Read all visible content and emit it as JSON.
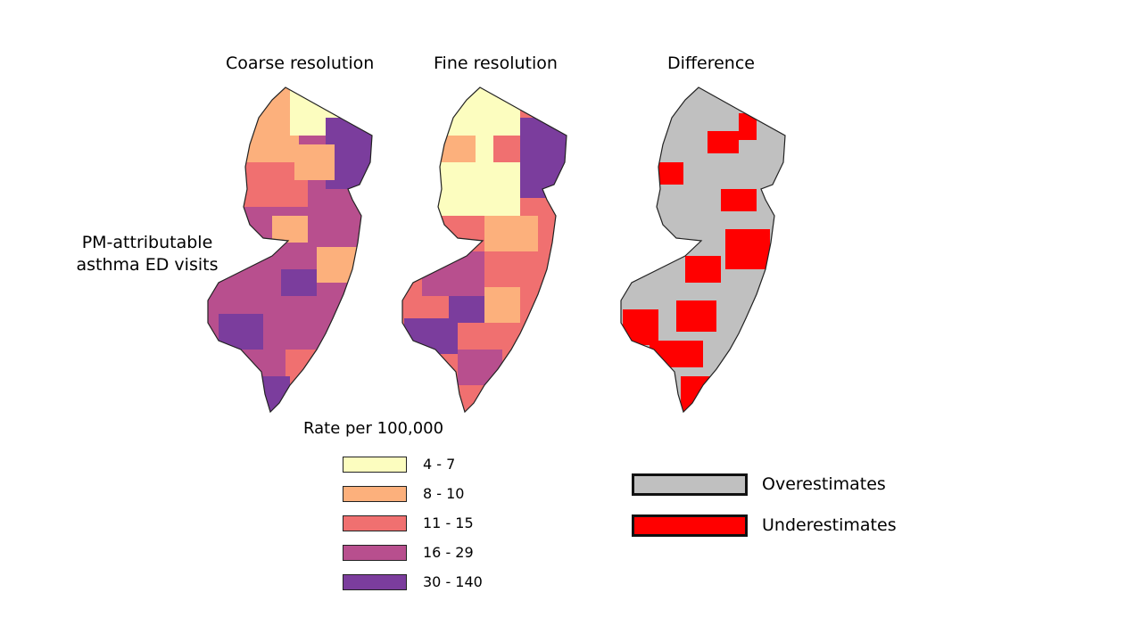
{
  "maps": {
    "coarse_title": "Coarse resolution",
    "fine_title": "Fine resolution",
    "difference_title": "Difference",
    "row_label": "PM-attributable asthma ED visits"
  },
  "legend_rate": {
    "title": "Rate per 100,000",
    "classes": [
      {
        "label": "4 - 7",
        "color": "#fcfdbf"
      },
      {
        "label": "8 - 10",
        "color": "#fcb07c"
      },
      {
        "label": "11 - 15",
        "color": "#f07070"
      },
      {
        "label": "16 - 29",
        "color": "#b84f8e"
      },
      {
        "label": "30 - 140",
        "color": "#7b3d9d"
      }
    ]
  },
  "legend_difference": {
    "classes": [
      {
        "label": "Overestimates",
        "color": "#c0c0c0"
      },
      {
        "label": "Underestimates",
        "color": "#ff0000"
      }
    ]
  }
}
